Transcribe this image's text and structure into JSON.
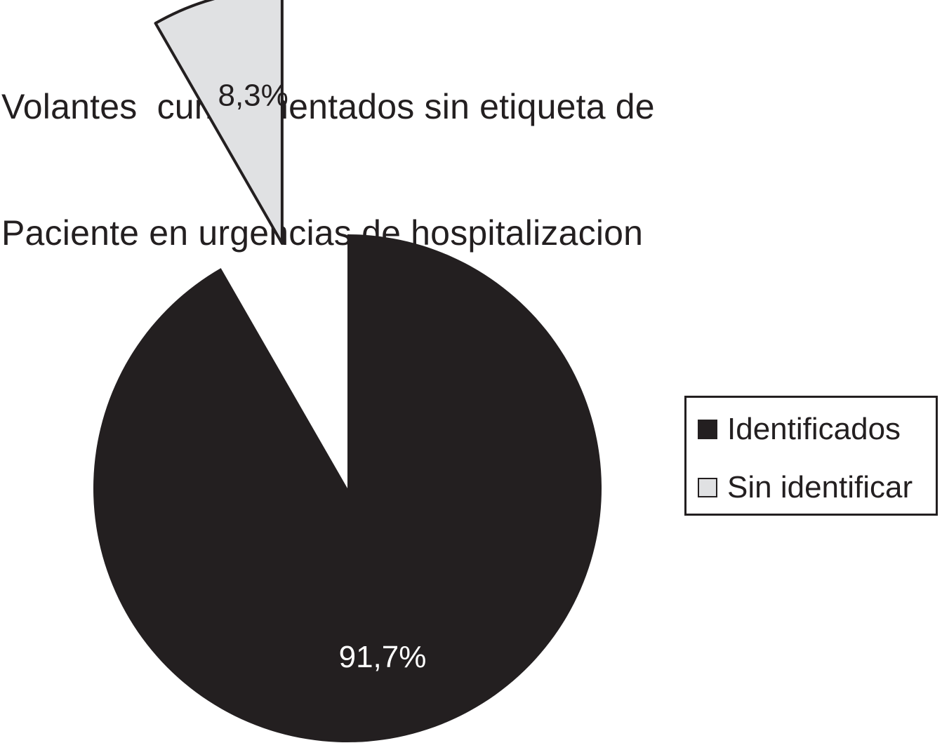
{
  "chart_data": {
    "type": "pie",
    "title_lines": [
      "Volantes  cumplimentados sin etiqueta de",
      "Paciente en urgencias de hospitalizacion"
    ],
    "slices": [
      {
        "label": "Identificados",
        "value": 91.7,
        "display": "91,7%",
        "color": "#231f20",
        "label_color": "#ffffff",
        "exploded": false
      },
      {
        "label": "Sin identificar",
        "value": 8.3,
        "display": "8,3%",
        "color": "#e0e1e3",
        "label_color": "#231f20",
        "exploded": true
      }
    ],
    "legend": {
      "position": "right"
    }
  }
}
